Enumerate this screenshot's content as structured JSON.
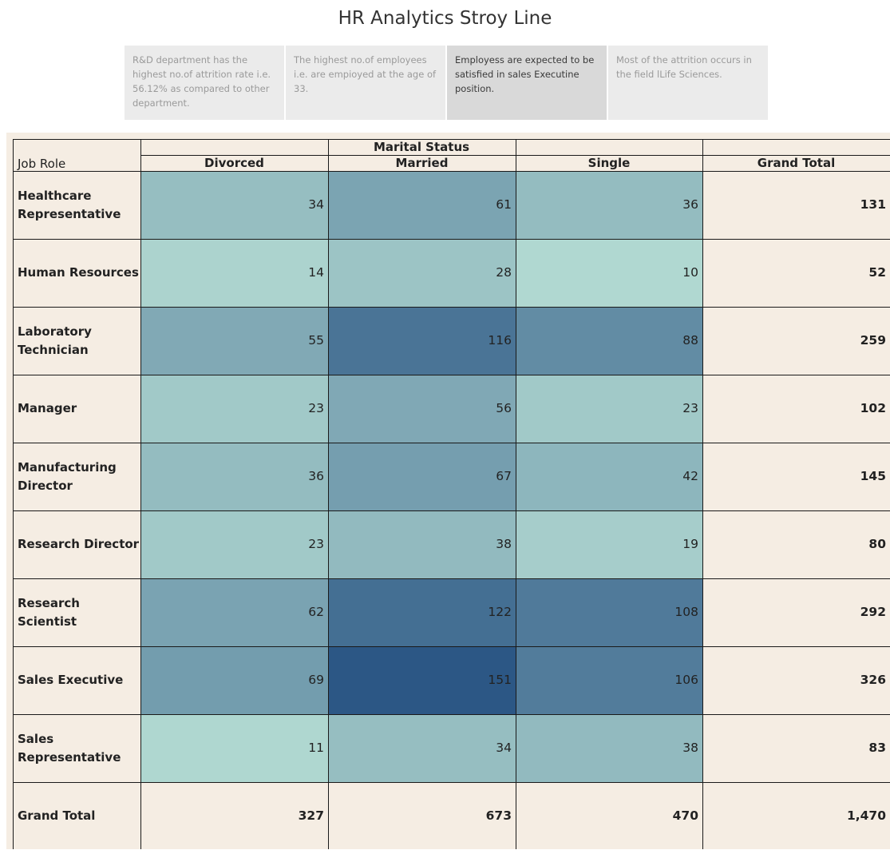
{
  "story": {
    "title": "HR Analytics Stroy Line",
    "points": [
      {
        "text": "R&D department has the highest no.of attrition rate i.e. 56.12% as compared to other department.",
        "active": false
      },
      {
        "text": "The highest no.of employees i.e. are empioyed at the age of 33.",
        "active": false
      },
      {
        "text": "Employess are expected to be satisfied in sales Executine position.",
        "active": true
      },
      {
        "text": "Most of the attrition occurs in the field lLife Sciences.",
        "active": false
      }
    ]
  },
  "table": {
    "row_header": "Job Role",
    "column_group": "Marital Status",
    "columns": [
      "Divorced",
      "Married",
      "Single",
      "Grand Total"
    ],
    "rows": [
      {
        "role": "Healthcare Representative",
        "values": [
          34,
          61,
          36
        ],
        "total": "131"
      },
      {
        "role": "Human Resources",
        "values": [
          14,
          28,
          10
        ],
        "total": "52"
      },
      {
        "role": "Laboratory Technician",
        "values": [
          55,
          116,
          88
        ],
        "total": "259"
      },
      {
        "role": "Manager",
        "values": [
          23,
          56,
          23
        ],
        "total": "102"
      },
      {
        "role": "Manufacturing Director",
        "values": [
          36,
          67,
          42
        ],
        "total": "145"
      },
      {
        "role": "Research Director",
        "values": [
          23,
          38,
          19
        ],
        "total": "80"
      },
      {
        "role": "Research Scientist",
        "values": [
          62,
          122,
          108
        ],
        "total": "292"
      },
      {
        "role": "Sales Executive",
        "values": [
          69,
          151,
          106
        ],
        "total": "326"
      },
      {
        "role": "Sales Representative",
        "values": [
          11,
          34,
          38
        ],
        "total": "83"
      }
    ],
    "grand_total": {
      "label": "Grand Total",
      "values": [
        "327",
        "673",
        "470"
      ],
      "total": "1,470"
    }
  },
  "colors": {
    "heat_low": "#bfe6d9",
    "heat_high": "#2c5785",
    "background": "#f5ede3"
  }
}
